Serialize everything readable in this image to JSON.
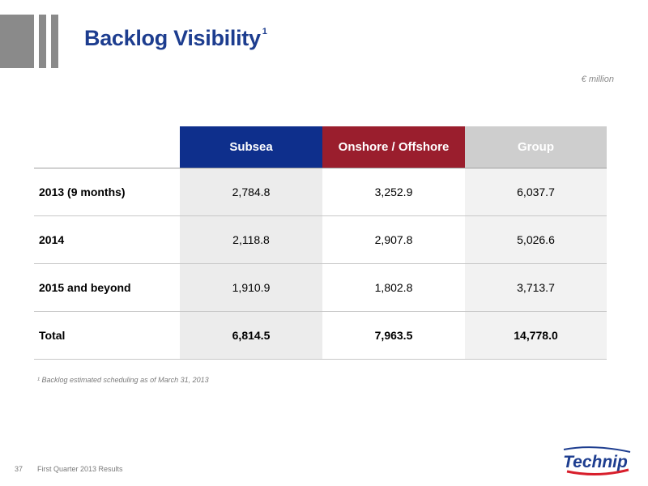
{
  "header": {
    "title": "Backlog Visibility",
    "title_marker": "1",
    "unit": "€ million"
  },
  "table": {
    "columns": [
      "Subsea",
      "Onshore / Offshore",
      "Group"
    ],
    "rows": [
      {
        "label": "2013 (9 months)",
        "subsea": "2,784.8",
        "onshore_offshore": "3,252.9",
        "group": "6,037.7"
      },
      {
        "label": "2014",
        "subsea": "2,118.8",
        "onshore_offshore": "2,907.8",
        "group": "5,026.6"
      },
      {
        "label": "2015 and beyond",
        "subsea": "1,910.9",
        "onshore_offshore": "1,802.8",
        "group": "3,713.7"
      },
      {
        "label": "Total",
        "subsea": "6,814.5",
        "onshore_offshore": "7,963.5",
        "group": "14,778.0"
      }
    ]
  },
  "footnote": "¹ Backlog estimated scheduling as of March 31, 2013",
  "footer": {
    "page_number": "37",
    "text": "First Quarter 2013 Results"
  },
  "logo": {
    "text": "Technip",
    "colors": {
      "blue": "#1d3d8f",
      "red": "#d81e2b"
    }
  },
  "colors": {
    "subsea": "#0e2f8c",
    "onshore_offshore": "#9a1e2d",
    "group": "#cecece",
    "title": "#1d3d8f"
  }
}
